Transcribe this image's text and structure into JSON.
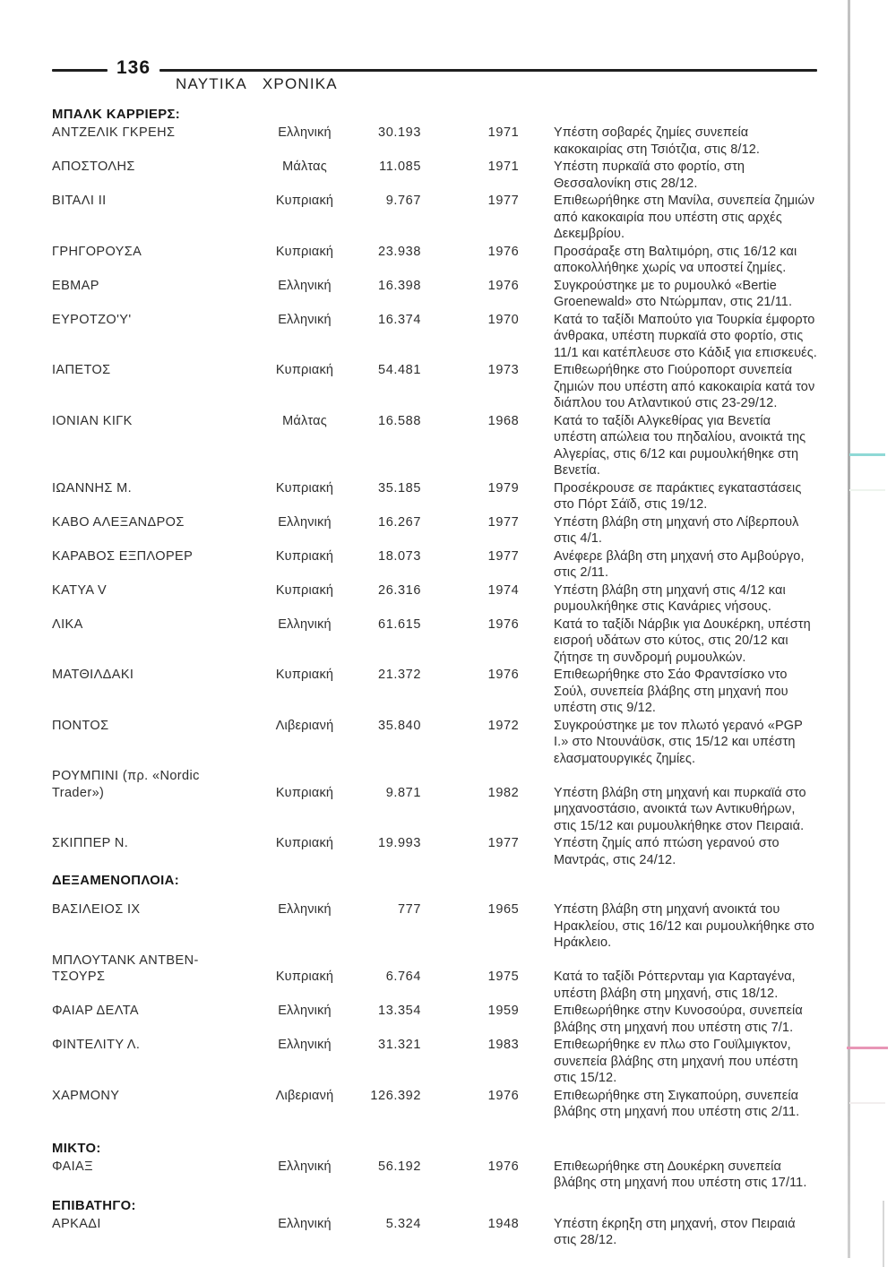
{
  "page": {
    "number": "136",
    "journal_title": "ΝΑΥΤΙΚΑ ΧΡΟΝΙΚΑ"
  },
  "artifact_colors": {
    "edge_line": "#b5b5b5",
    "cyan_registration_mark": "#8fd9d6",
    "magenta_registration_mark": "#e896b6"
  },
  "table": {
    "rows": [
      {
        "type": "section",
        "label": "ΜΠΑΛΚ ΚΑΡΡΙΕΡΣ:"
      },
      {
        "type": "ship",
        "name": "ΑΝΤΖΕΛΙΚ ΓΚΡΕΗΣ",
        "flag": "Ελληνική",
        "tonnage": "30.193",
        "year": "1971",
        "desc": "Υπέστη σοβαρές ζημίες συνεπεία κακοκαιρίας στη Τσιότζια, στις 8/12."
      },
      {
        "type": "ship",
        "name": "ΑΠΟΣΤΟΛΗΣ",
        "flag": "Μάλτας",
        "tonnage": "11.085",
        "year": "1971",
        "desc": "Υπέστη πυρκαϊά στο φορτίο, στη Θεσσαλονίκη στις 28/12."
      },
      {
        "type": "ship",
        "name": "ΒΙΤΑΛΙ II",
        "flag": "Κυπριακή",
        "tonnage": "9.767",
        "year": "1977",
        "desc": "Επιθεωρήθηκε στη Μανίλα, συνεπεία ζημιών από κακοκαιρία που υπέστη στις αρχές Δεκεμβρίου."
      },
      {
        "type": "ship",
        "name": "ΓΡΗΓΟΡΟΥΣΑ",
        "flag": "Κυπριακή",
        "tonnage": "23.938",
        "year": "1976",
        "desc": "Προσάραξε στη Βαλτιμόρη, στις 16/12 και αποκολλήθηκε χωρίς να υποστεί ζημίες."
      },
      {
        "type": "ship",
        "name": "ΕΒΜΑΡ",
        "flag": "Ελληνική",
        "tonnage": "16.398",
        "year": "1976",
        "desc": "Συγκρούστηκε με το ρυμουλκό «Bertie Groenewald» στο Ντώρμπαν, στις 21/11."
      },
      {
        "type": "ship",
        "name": "ΕΥΡΟΤΖΟ'Υ'",
        "flag": "Ελληνική",
        "tonnage": "16.374",
        "year": "1970",
        "desc": "Κατά το ταξίδι Μαπούτο για Τουρκία έμφορτο άνθρακα, υπέστη πυρκαϊά στο φορτίο, στις 11/1 και κατέπλευσε στο Κάδιξ για επισκευές."
      },
      {
        "type": "ship",
        "name": "ΙΑΠΕΤΟΣ",
        "flag": "Κυπριακή",
        "tonnage": "54.481",
        "year": "1973",
        "desc": "Επιθεωρήθηκε στο Γιούροπορτ συνεπεία ζημιών που υπέστη από κακοκαιρία κατά τον διάπλου του Ατλαντικού στις 23-29/12."
      },
      {
        "type": "ship",
        "name": "ΙΟΝΙΑΝ ΚΙΓΚ",
        "flag": "Μάλτας",
        "tonnage": "16.588",
        "year": "1968",
        "desc": "Κατά το ταξίδι Αλγκεθίρας για Βενετία υπέστη απώλεια του πηδαλίου, ανοικτά της Αλγερίας, στις 6/12 και ρυμουλκήθηκε στη Βενετία."
      },
      {
        "type": "ship",
        "name": "ΙΩΑΝΝΗΣ Μ.",
        "flag": "Κυπριακή",
        "tonnage": "35.185",
        "year": "1979",
        "desc": "Προσέκρουσε σε παράκτιες εγκαταστάσεις στο Πόρτ Σάϊδ, στις 19/12."
      },
      {
        "type": "ship",
        "name": "ΚΑΒΟ ΑΛΕΞΑΝΔΡΟΣ",
        "flag": "Ελληνική",
        "tonnage": "16.267",
        "year": "1977",
        "desc": "Υπέστη βλάβη στη μηχανή στο Λίβερπουλ στις 4/1."
      },
      {
        "type": "ship",
        "name": "ΚΑΡΑΒΟΣ ΕΞΠΛΟΡΕΡ",
        "flag": "Κυπριακή",
        "tonnage": "18.073",
        "year": "1977",
        "desc": "Ανέφερε βλάβη στη μηχανή στο Αμβούργο, στις 2/11."
      },
      {
        "type": "ship",
        "name": "ΚΑΤΥΑ V",
        "flag": "Κυπριακή",
        "tonnage": "26.316",
        "year": "1974",
        "desc": "Υπέστη βλάβη στη μηχανή στις 4/12 και ρυμουλκήθηκε στις Κανάριες νήσους."
      },
      {
        "type": "ship",
        "name": "ΛΙΚΑ",
        "flag": "Ελληνική",
        "tonnage": "61.615",
        "year": "1976",
        "desc": "Κατά το ταξίδι Νάρβικ για Δουκέρκη, υπέστη εισροή υδάτων στο κύτος, στις 20/12 και ζήτησε τη συνδρομή ρυμουλκών."
      },
      {
        "type": "ship",
        "name": "ΜΑΤΘΙΛΔΑΚΙ",
        "flag": "Κυπριακή",
        "tonnage": "21.372",
        "year": "1976",
        "desc": "Επιθεωρήθηκε στο Σάο Φραντσίσκο ντο Σούλ, συνεπεία βλάβης στη μηχανή που υπέστη στις 9/12."
      },
      {
        "type": "ship",
        "name": "ΠΟΝΤΟΣ",
        "flag": "Λιβεριανή",
        "tonnage": "35.840",
        "year": "1972",
        "desc": "Συγκρούστηκε με τον πλωτό γερανό «PGP I.» στο Ντουνάϋσκ, στις 15/12 και υπέστη ελασματουργικές ζημίες."
      },
      {
        "type": "ship",
        "name": "ΡΟΥΜΠΙΝΙ (πρ. «Nordic\nTrader»)",
        "flag": "Κυπριακή",
        "tonnage": "9.871",
        "year": "1982",
        "desc": "Υπέστη βλάβη στη μηχανή και πυρκαϊά στο μηχανοστάσιο, ανοικτά των Αντικυθήρων, στις 15/12 και ρυμουλκήθηκε στον Πειραιά."
      },
      {
        "type": "ship",
        "name": "ΣΚΙΠΠΕΡ Ν.",
        "flag": "Κυπριακή",
        "tonnage": "19.993",
        "year": "1977",
        "desc": "Υπέστη ζημίς από πτώση γερανού στο Μαντράς, στις 24/12."
      },
      {
        "type": "section",
        "label": "ΔΕΞΑΜΕΝΟΠΛΟΙΑ:"
      },
      {
        "type": "ship",
        "name": "ΒΑΣΙΛΕΙΟΣ ΙΧ",
        "flag": "Ελληνική",
        "tonnage": "777",
        "year": "1965",
        "desc": "Υπέστη βλάβη στη μηχανή ανοικτά του Ηρακλείου, στις 16/12 και ρυμουλκήθηκε στο Ηράκλειο."
      },
      {
        "type": "ship",
        "name": "ΜΠΛΟΥΤΑΝΚ ΑΝΤΒΕΝ-\nΤΣΟΥΡΣ",
        "flag": "Κυπριακή",
        "tonnage": "6.764",
        "year": "1975",
        "desc": "Κατά το ταξίδι Ρόττερνταμ για Καρταγένα, υπέστη βλάβη στη μηχανή, στις 18/12."
      },
      {
        "type": "ship",
        "name": "ΦΑΙΑΡ ΔΕΛΤΑ",
        "flag": "Ελληνική",
        "tonnage": "13.354",
        "year": "1959",
        "desc": "Επιθεωρήθηκε στην Κυνοσούρα, συνεπεία βλάβης στη μηχανή που υπέστη στις 7/1."
      },
      {
        "type": "ship",
        "name": "ΦΙΝΤΕΛΙΤΥ Λ.",
        "flag": "Ελληνική",
        "tonnage": "31.321",
        "year": "1983",
        "desc": "Επιθεωρήθηκε εν πλω στο Γουϊλμιγκτον, συνεπεία βλάβης στη μηχανή που υπέστη στις 15/12."
      },
      {
        "type": "ship",
        "name": "ΧΑΡΜΟΝΥ",
        "flag": "Λιβεριανή",
        "tonnage": "126.392",
        "year": "1976",
        "desc": "Επιθεωρήθηκε στη Σιγκαπούρη, συνεπεία βλάβης στη μηχανή που υπέστη στις 2/11."
      },
      {
        "type": "section",
        "label": "ΜΙΚΤΟ:"
      },
      {
        "type": "ship",
        "name": "ΦΑΙΑΞ",
        "flag": "Ελληνική",
        "tonnage": "56.192",
        "year": "1976",
        "desc": "Επιθεωρήθηκε στη Δουκέρκη συνεπεία βλάβης στη μηχανή που υπέστη στις 17/11."
      },
      {
        "type": "section",
        "label": "ΕΠΙΒΑΤΗΓΟ:"
      },
      {
        "type": "ship",
        "name": "ΑΡΚΑΔΙ",
        "flag": "Ελληνική",
        "tonnage": "5.324",
        "year": "1948",
        "desc": "Υπέστη έκρηξη στη μηχανή, στον Πειραιά στις 28/12."
      }
    ]
  }
}
